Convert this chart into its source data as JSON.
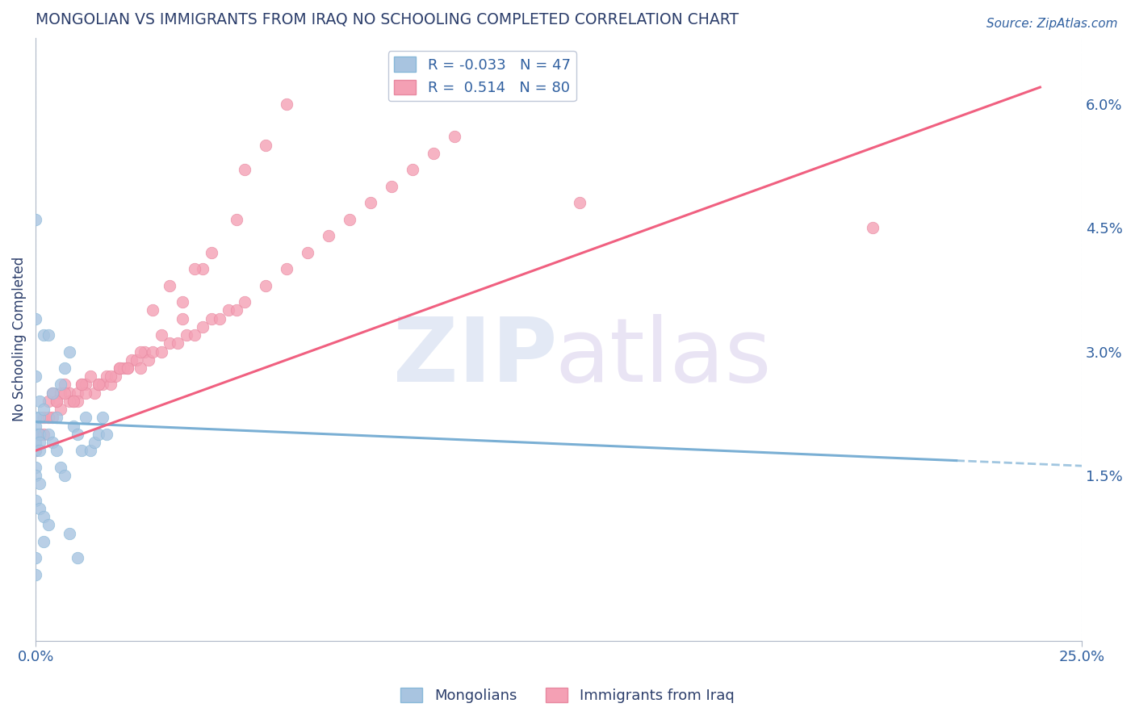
{
  "title": "MONGOLIAN VS IMMIGRANTS FROM IRAQ NO SCHOOLING COMPLETED CORRELATION CHART",
  "source_text": "Source: ZipAtlas.com",
  "ylabel": "No Schooling Completed",
  "right_yticks": [
    "1.5%",
    "3.0%",
    "4.5%",
    "6.0%"
  ],
  "right_ytick_vals": [
    0.015,
    0.03,
    0.045,
    0.06
  ],
  "xlim": [
    0.0,
    0.25
  ],
  "ylim": [
    -0.005,
    0.068
  ],
  "legend_r1": "R = -0.033",
  "legend_n1": "N = 47",
  "legend_r2": "R =  0.514",
  "legend_n2": "N = 80",
  "mongolian_color": "#a8c4e0",
  "iraq_color": "#f4a0b4",
  "mongolian_line_color": "#7aafd4",
  "iraq_line_color": "#f06080",
  "mongolian_scatter_x": [
    0.0,
    0.0,
    0.0,
    0.0,
    0.0,
    0.0,
    0.0,
    0.0,
    0.0,
    0.0,
    0.0,
    0.0,
    0.001,
    0.001,
    0.001,
    0.001,
    0.001,
    0.001,
    0.001,
    0.002,
    0.002,
    0.002,
    0.002,
    0.003,
    0.003,
    0.003,
    0.004,
    0.004,
    0.005,
    0.005,
    0.006,
    0.006,
    0.007,
    0.007,
    0.008,
    0.008,
    0.009,
    0.01,
    0.01,
    0.011,
    0.012,
    0.013,
    0.014,
    0.015,
    0.016,
    0.017,
    0.0
  ],
  "mongolian_scatter_y": [
    0.046,
    0.034,
    0.027,
    0.022,
    0.021,
    0.02,
    0.019,
    0.018,
    0.016,
    0.015,
    0.012,
    0.005,
    0.024,
    0.022,
    0.02,
    0.019,
    0.018,
    0.014,
    0.011,
    0.032,
    0.023,
    0.01,
    0.007,
    0.032,
    0.02,
    0.009,
    0.025,
    0.019,
    0.022,
    0.018,
    0.026,
    0.016,
    0.028,
    0.015,
    0.03,
    0.008,
    0.021,
    0.02,
    0.005,
    0.018,
    0.022,
    0.018,
    0.019,
    0.02,
    0.022,
    0.02,
    0.003
  ],
  "iraq_scatter_x": [
    0.0,
    0.001,
    0.002,
    0.003,
    0.004,
    0.005,
    0.006,
    0.007,
    0.008,
    0.009,
    0.01,
    0.011,
    0.012,
    0.013,
    0.014,
    0.015,
    0.016,
    0.017,
    0.018,
    0.019,
    0.02,
    0.021,
    0.022,
    0.023,
    0.024,
    0.025,
    0.026,
    0.027,
    0.028,
    0.03,
    0.032,
    0.034,
    0.036,
    0.038,
    0.04,
    0.042,
    0.044,
    0.046,
    0.048,
    0.05,
    0.055,
    0.06,
    0.065,
    0.07,
    0.075,
    0.08,
    0.085,
    0.09,
    0.095,
    0.1,
    0.04,
    0.05,
    0.06,
    0.055,
    0.035,
    0.028,
    0.032,
    0.038,
    0.042,
    0.048,
    0.025,
    0.03,
    0.035,
    0.02,
    0.015,
    0.012,
    0.018,
    0.022,
    0.01,
    0.008,
    0.006,
    0.004,
    0.002,
    0.13,
    0.2,
    0.003,
    0.005,
    0.007,
    0.009,
    0.011
  ],
  "iraq_scatter_y": [
    0.018,
    0.02,
    0.022,
    0.024,
    0.025,
    0.024,
    0.025,
    0.026,
    0.025,
    0.024,
    0.025,
    0.026,
    0.026,
    0.027,
    0.025,
    0.026,
    0.026,
    0.027,
    0.026,
    0.027,
    0.028,
    0.028,
    0.028,
    0.029,
    0.029,
    0.028,
    0.03,
    0.029,
    0.03,
    0.03,
    0.031,
    0.031,
    0.032,
    0.032,
    0.033,
    0.034,
    0.034,
    0.035,
    0.035,
    0.036,
    0.038,
    0.04,
    0.042,
    0.044,
    0.046,
    0.048,
    0.05,
    0.052,
    0.054,
    0.056,
    0.04,
    0.052,
    0.06,
    0.055,
    0.036,
    0.035,
    0.038,
    0.04,
    0.042,
    0.046,
    0.03,
    0.032,
    0.034,
    0.028,
    0.026,
    0.025,
    0.027,
    0.028,
    0.024,
    0.024,
    0.023,
    0.022,
    0.02,
    0.048,
    0.045,
    0.022,
    0.024,
    0.025,
    0.024,
    0.026
  ],
  "mon_line_x0": 0.0,
  "mon_line_x1": 0.22,
  "mon_line_y0": 0.0215,
  "mon_line_y1": 0.0168,
  "iraq_line_x0": 0.0,
  "iraq_line_x1": 0.24,
  "iraq_line_y0": 0.018,
  "iraq_line_y1": 0.062
}
